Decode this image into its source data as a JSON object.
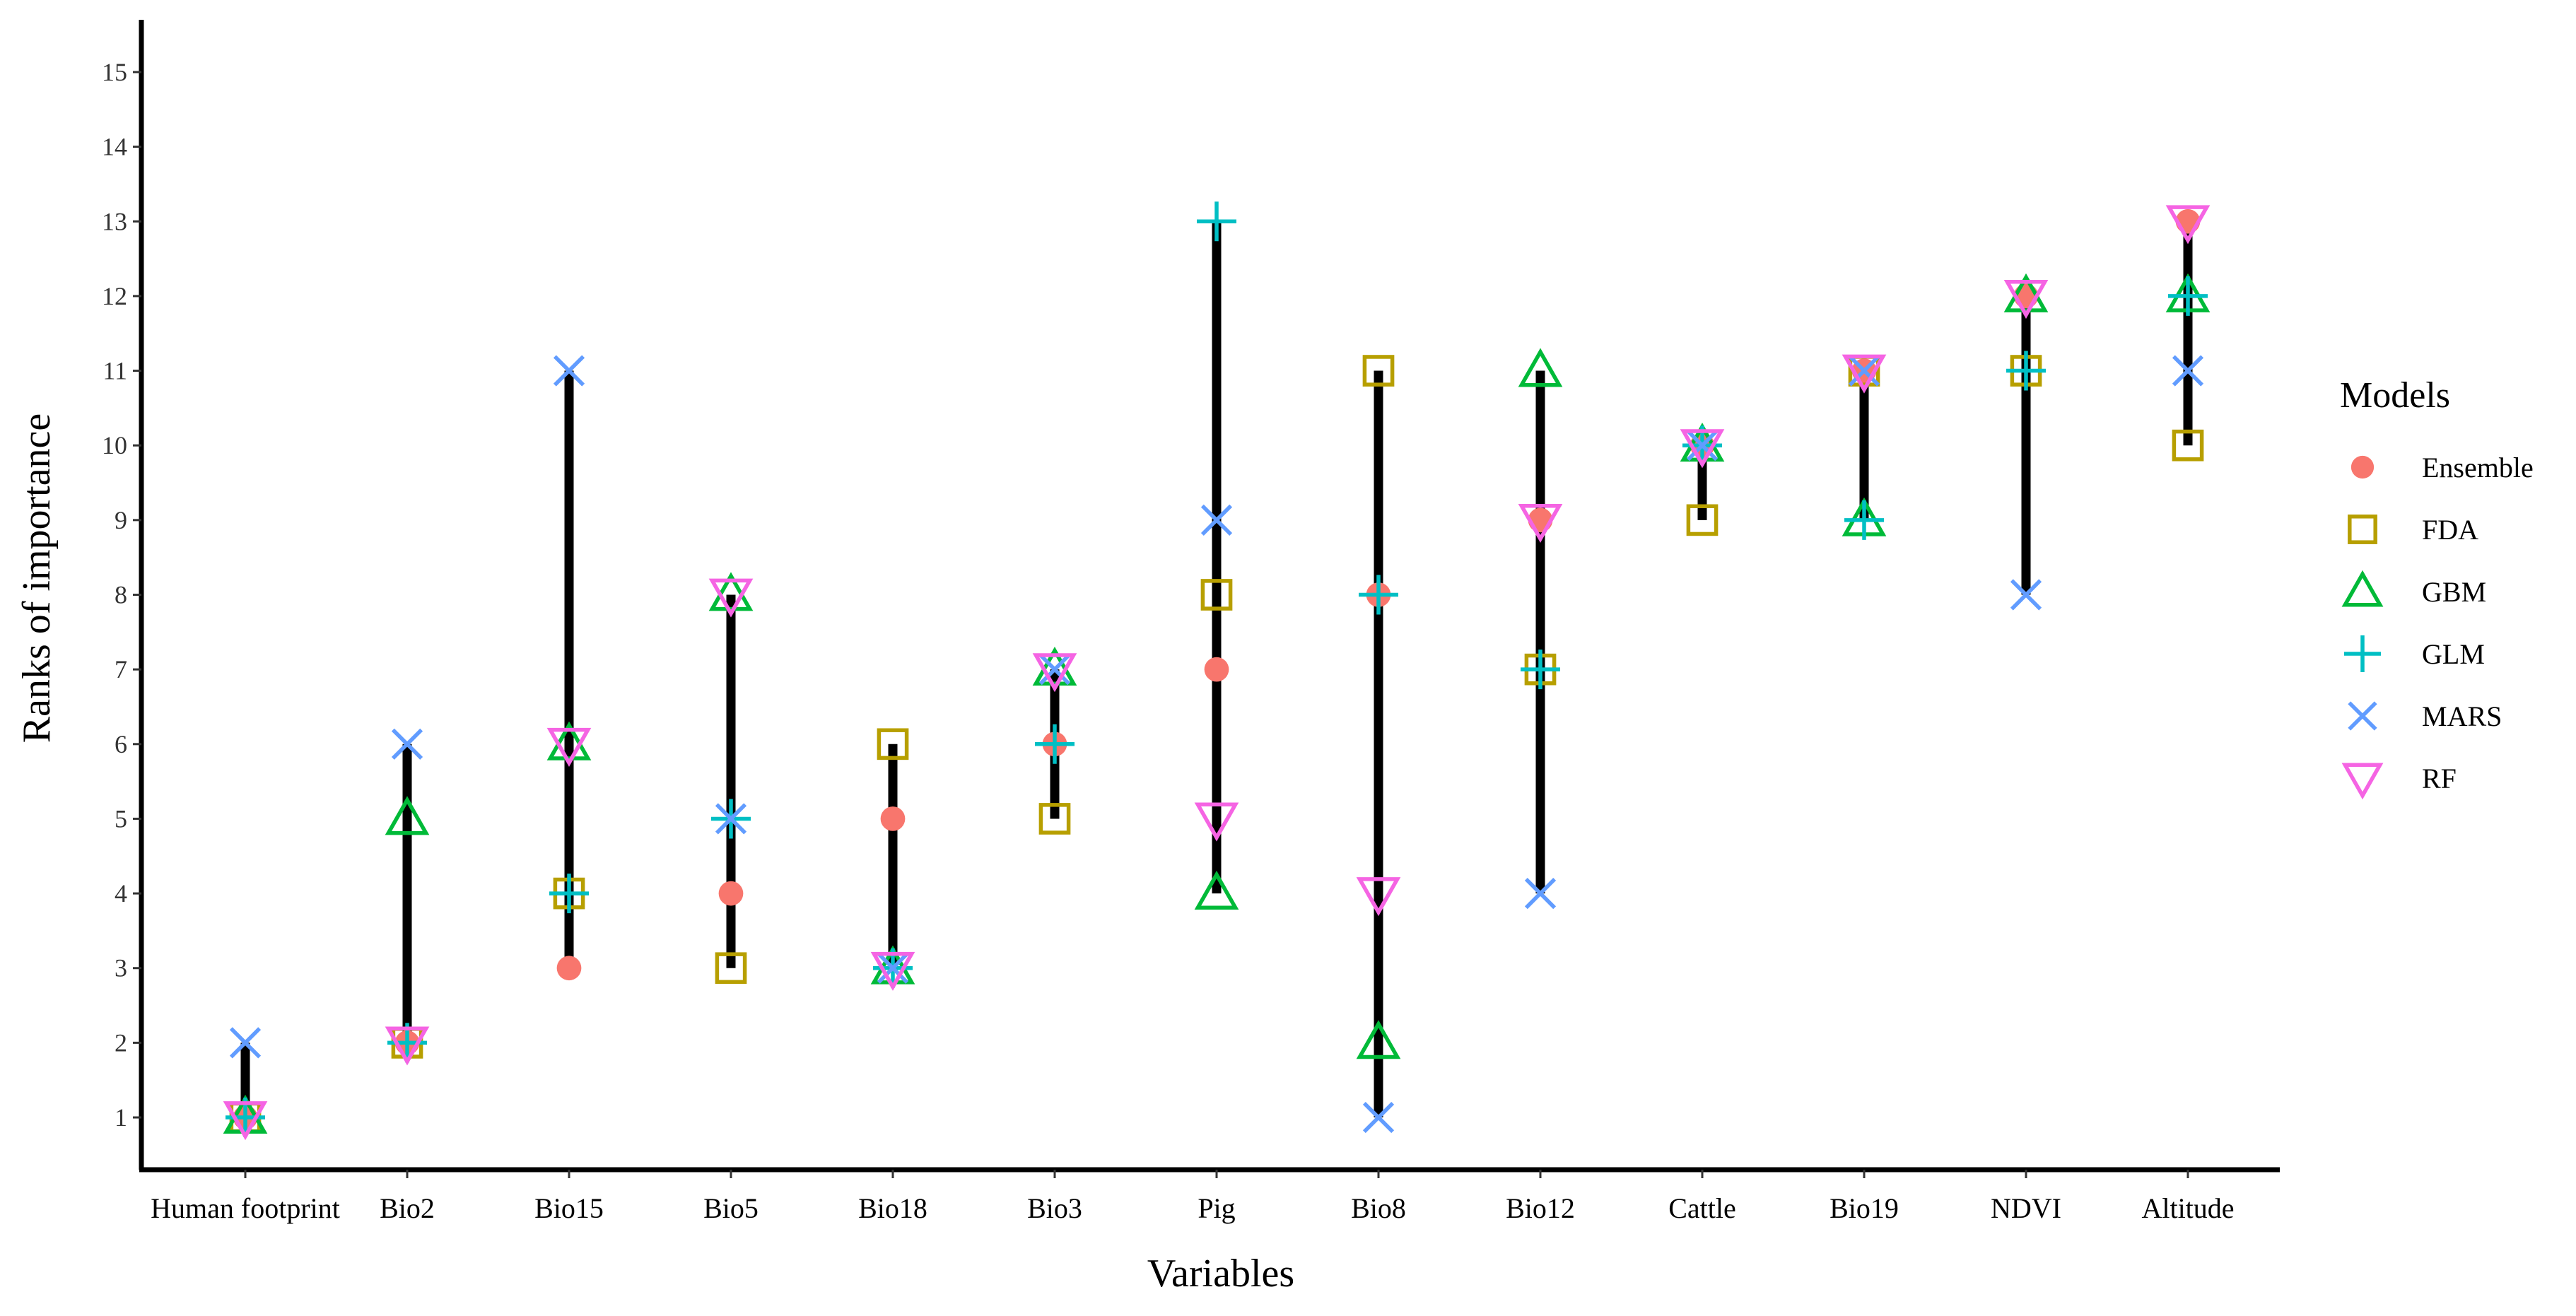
{
  "chart_data": {
    "type": "scatter",
    "title": "",
    "xlabel": "Variables",
    "ylabel": "Ranks of importance",
    "ylim": [
      0.3,
      15.7
    ],
    "yticks": [
      1,
      2,
      3,
      4,
      5,
      6,
      7,
      8,
      9,
      10,
      11,
      12,
      13,
      14,
      15
    ],
    "grid": false,
    "legend_position": "right",
    "legend_title": "Models",
    "categories": [
      "Human footprint",
      "Bio2",
      "Bio15",
      "Bio5",
      "Bio18",
      "Bio3",
      "Pig",
      "Bio8",
      "Bio12",
      "Cattle",
      "Bio19",
      "NDVI",
      "Altitude"
    ],
    "range_bars": [
      [
        1,
        2
      ],
      [
        2,
        6
      ],
      [
        3,
        11
      ],
      [
        3,
        8
      ],
      [
        3,
        6
      ],
      [
        5,
        7
      ],
      [
        4,
        13
      ],
      [
        1,
        11
      ],
      [
        4,
        11
      ],
      [
        9,
        10
      ],
      [
        9,
        11
      ],
      [
        8,
        12
      ],
      [
        10,
        13
      ]
    ],
    "series": [
      {
        "name": "Ensemble",
        "marker": "circle",
        "color": "#F8766D",
        "values": [
          1,
          2,
          3,
          4,
          5,
          6,
          7,
          8,
          9,
          10,
          11,
          12,
          13
        ]
      },
      {
        "name": "FDA",
        "marker": "square",
        "color": "#B79F00",
        "values": [
          1,
          2,
          4,
          3,
          6,
          5,
          8,
          11,
          7,
          9,
          11,
          11,
          10
        ]
      },
      {
        "name": "GBM",
        "marker": "triangle-up",
        "color": "#00BA38",
        "values": [
          1,
          5,
          6,
          8,
          3,
          7,
          4,
          2,
          11,
          10,
          9,
          12,
          12
        ]
      },
      {
        "name": "GLM",
        "marker": "plus",
        "color": "#00BFC4",
        "values": [
          1,
          2,
          4,
          5,
          3,
          6,
          13,
          8,
          7,
          10,
          9,
          11,
          12
        ]
      },
      {
        "name": "MARS",
        "marker": "x",
        "color": "#619CFF",
        "values": [
          2,
          6,
          11,
          5,
          3,
          7,
          9,
          1,
          4,
          10,
          11,
          8,
          11
        ]
      },
      {
        "name": "RF",
        "marker": "triangle-down",
        "color": "#F564E3",
        "values": [
          1,
          2,
          6,
          8,
          3,
          7,
          5,
          4,
          9,
          10,
          11,
          12,
          13
        ]
      }
    ]
  }
}
